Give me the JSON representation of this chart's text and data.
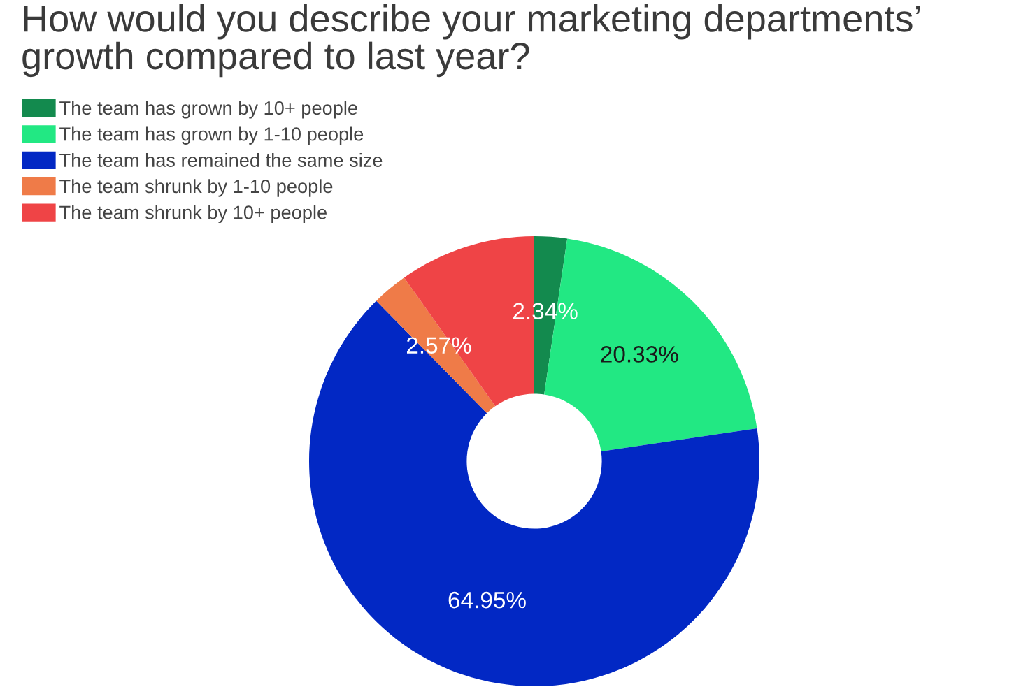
{
  "chart_data": {
    "type": "donut",
    "title": "How would you describe your marketing departments’ growth compared to last year?",
    "categories": [
      "The team has grown by 10+ people",
      "The team has grown by 1-10 people",
      "The team has remained the same size",
      "The team shrunk by 1-10 people",
      "The team shrunk by 10+ people"
    ],
    "values": [
      2.34,
      20.33,
      64.95,
      2.57,
      9.81
    ],
    "colors": [
      "#138a4e",
      "#22e883",
      "#0228c4",
      "#ef7b48",
      "#ef4446"
    ],
    "value_labels": [
      "2.34%",
      "20.33%",
      "64.95%",
      "2.57%",
      null
    ],
    "legend": "top left"
  }
}
